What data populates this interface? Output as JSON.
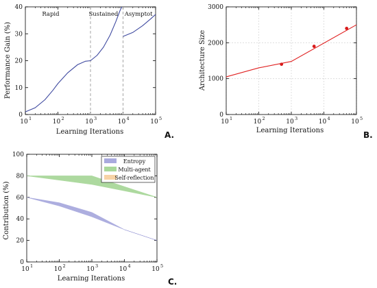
{
  "panel_labels": {
    "a": "A.",
    "b": "B.",
    "c": "C."
  },
  "colors": {
    "curve_blue": "#3f4aa0",
    "curve_red": "#e02020",
    "marker_red": "#d81b1b",
    "entropy_fill": "#a9aade",
    "multiagent_fill": "#a9d89a",
    "selfreflection_fill": "#f7d3a6",
    "divider": "#9c9c9c"
  },
  "chart_data": [
    {
      "id": "A",
      "type": "line",
      "xscale": "log",
      "xlim": [
        10,
        100000
      ],
      "ylim": [
        0,
        40
      ],
      "xticks": [
        10,
        100,
        1000,
        10000,
        100000
      ],
      "xtick_labels": [
        [
          "10",
          "1"
        ],
        [
          "10",
          "2"
        ],
        [
          "10",
          "3"
        ],
        [
          "10",
          "4"
        ],
        [
          "10",
          "5"
        ]
      ],
      "yticks": [
        0,
        10,
        20,
        30,
        40
      ],
      "ytick_labels": [
        "0",
        "10",
        "20",
        "30",
        "40"
      ],
      "xlabel": "Learning Iterations",
      "ylabel": "Performance Gain (%)",
      "grid": false,
      "dividers": [
        1000,
        10000
      ],
      "phase_labels": [
        {
          "text": "Rapid",
          "x": 60
        },
        {
          "text": "Sustained",
          "x": 2500
        },
        {
          "text": "Asymptot",
          "x": 30000
        }
      ],
      "series": [
        {
          "segment": 1,
          "x": [
            10,
            20,
            40,
            70,
            100,
            200,
            400,
            700,
            1000
          ],
          "y": [
            1,
            2.5,
            5.5,
            9,
            11.5,
            15.5,
            18.5,
            19.8,
            20
          ]
        },
        {
          "segment": 2,
          "x": [
            1000,
            1600,
            2500,
            4000,
            6000,
            8000,
            10000
          ],
          "y": [
            20,
            22,
            25,
            29.5,
            34.5,
            38.5,
            41
          ]
        },
        {
          "segment": 3,
          "x": [
            10000,
            20000,
            40000,
            70000,
            100000
          ],
          "y": [
            29,
            30.5,
            33,
            35.5,
            37.2
          ]
        }
      ]
    },
    {
      "id": "B",
      "type": "line",
      "xscale": "log",
      "xlim": [
        10,
        100000
      ],
      "ylim": [
        0,
        3000
      ],
      "xticks": [
        10,
        100,
        1000,
        10000,
        100000
      ],
      "xtick_labels": [
        [
          "10",
          "1"
        ],
        [
          "10",
          "2"
        ],
        [
          "10",
          "3"
        ],
        [
          "10",
          "4"
        ],
        [
          "10",
          "5"
        ]
      ],
      "yticks": [
        0,
        1000,
        2000,
        3000
      ],
      "ytick_labels": [
        "0",
        "1000",
        "2000",
        "3000"
      ],
      "xlabel": "Learning Iterations",
      "ylabel": "Architecture Size",
      "grid": true,
      "series": [
        {
          "x": [
            10,
            100,
            1000,
            100000
          ],
          "y": [
            1050,
            1300,
            1480,
            2500
          ]
        }
      ],
      "points": {
        "x": [
          500,
          5000,
          50000
        ],
        "y": [
          1400,
          1900,
          2400
        ]
      }
    },
    {
      "id": "C",
      "type": "area",
      "xscale": "log",
      "xlim": [
        10,
        100000
      ],
      "ylim": [
        0,
        100
      ],
      "xticks": [
        10,
        100,
        1000,
        10000,
        100000
      ],
      "xtick_labels": [
        [
          "10",
          "1"
        ],
        [
          "10",
          "2"
        ],
        [
          "10",
          "3"
        ],
        [
          "10",
          "4"
        ],
        [
          "10",
          "5"
        ]
      ],
      "yticks": [
        0,
        20,
        40,
        60,
        80,
        100
      ],
      "ytick_labels": [
        "0",
        "20",
        "40",
        "60",
        "80",
        "100"
      ],
      "xlabel": "Learning Iterations",
      "ylabel": "Contribution (%)",
      "grid": false,
      "legend_position": "top-right",
      "series": [
        {
          "name": "Entropy",
          "x": [
            10,
            100,
            1000,
            10000,
            100000
          ],
          "lower": [
            60,
            52,
            42,
            30,
            20
          ],
          "upper": [
            60,
            55,
            46,
            30,
            20
          ]
        },
        {
          "name": "Multi-agent",
          "x": [
            10,
            100,
            1000,
            10000,
            100000
          ],
          "lower": [
            80,
            76,
            72,
            66,
            60
          ],
          "upper": [
            80,
            80,
            80,
            70,
            60
          ]
        },
        {
          "name": "Self-reflection",
          "x": [],
          "lower": [],
          "upper": []
        }
      ]
    }
  ]
}
